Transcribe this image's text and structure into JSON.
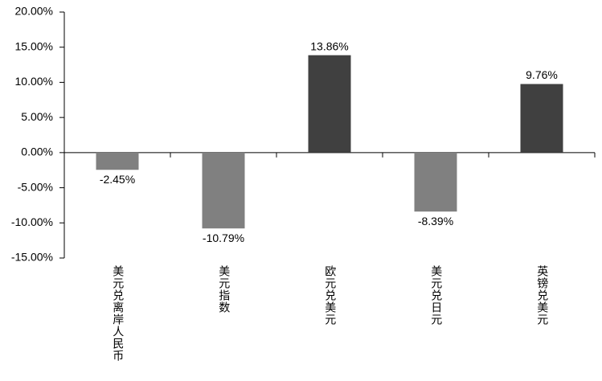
{
  "chart_data": {
    "type": "bar",
    "categories": [
      "美元兑离岸人民币",
      "美元指数",
      "欧元兑美元",
      "美元兑日元",
      "英镑兑美元"
    ],
    "values": [
      -2.45,
      -10.79,
      13.86,
      -8.39,
      9.76
    ],
    "value_labels": [
      "-2.45%",
      "-10.79%",
      "13.86%",
      "-8.39%",
      "9.76%"
    ],
    "colors": [
      "#808080",
      "#808080",
      "#404040",
      "#808080",
      "#404040"
    ],
    "ylim": [
      -15,
      20
    ],
    "yticks": [
      {
        "value": -15,
        "label": "-15.00%"
      },
      {
        "value": -10,
        "label": "-10.00%"
      },
      {
        "value": -5,
        "label": "-5.00%"
      },
      {
        "value": 0,
        "label": "0.00%"
      },
      {
        "value": 5,
        "label": "5.00%"
      },
      {
        "value": 10,
        "label": "10.00%"
      },
      {
        "value": 15,
        "label": "15.00%"
      },
      {
        "value": 20,
        "label": "20.00%"
      }
    ],
    "grid": false
  }
}
